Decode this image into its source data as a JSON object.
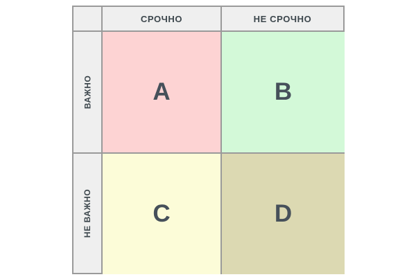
{
  "matrix": {
    "column_headers": [
      {
        "label": "СРОЧНО"
      },
      {
        "label": "НЕ СРОЧНО"
      }
    ],
    "row_headers": [
      {
        "label": "ВАЖНО"
      },
      {
        "label": "НЕ ВАЖНО"
      }
    ],
    "quadrants": [
      {
        "letter": "A",
        "bg": "#fdd3d3",
        "row": "ВАЖНО",
        "column": "СРОЧНО"
      },
      {
        "letter": "B",
        "bg": "#d3f9d8",
        "row": "ВАЖНО",
        "column": "НЕ СРОЧНО"
      },
      {
        "letter": "C",
        "bg": "#fcfcd8",
        "row": "НЕ ВАЖНО",
        "column": "СРОЧНО"
      },
      {
        "letter": "D",
        "bg": "#dcd9b2",
        "row": "НЕ ВАЖНО",
        "column": "НЕ СРОЧНО"
      }
    ],
    "colors": {
      "header_background": "#efefef",
      "border": "#9a9a9a",
      "header_text": "#3c464c",
      "quadrant_letter_text": "#46505a",
      "page_background": "#ffffff"
    }
  }
}
